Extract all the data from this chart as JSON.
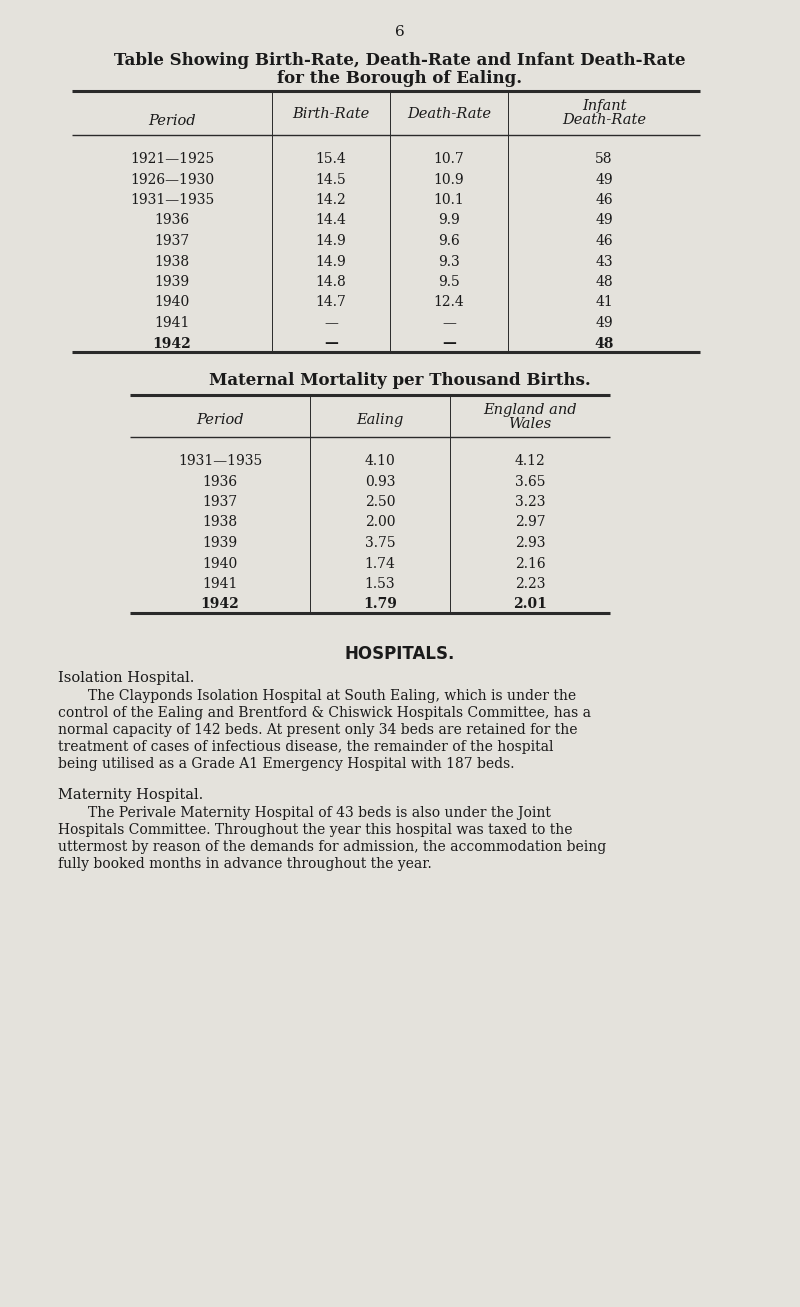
{
  "page_number": "6",
  "bg_color": "#e4e2dc",
  "text_color": "#1a1a1a",
  "table1_title_line1": "Table Showing Birth-Rate, Death-Rate and Infant Death-Rate",
  "table1_title_line2": "for the Borough of Ealing.",
  "table1_rows": [
    [
      "1921—1925",
      "15.4",
      "10.7",
      "58"
    ],
    [
      "1926—1930",
      "14.5",
      "10.9",
      "49"
    ],
    [
      "1931—1935",
      "14.2",
      "10.1",
      "46"
    ],
    [
      "1936",
      "14.4",
      "9.9",
      "49"
    ],
    [
      "1937",
      "14.9",
      "9.6",
      "46"
    ],
    [
      "1938",
      "14.9",
      "9.3",
      "43"
    ],
    [
      "1939",
      "14.8",
      "9.5",
      "48"
    ],
    [
      "1940",
      "14.7",
      "12.4",
      "41"
    ],
    [
      "1941",
      "—",
      "—",
      "49"
    ],
    [
      "1942",
      "—",
      "—",
      "48"
    ]
  ],
  "table2_title": "Maternal Mortality per Thousand Births.",
  "table2_rows": [
    [
      "1931—1935",
      "4.10",
      "4.12"
    ],
    [
      "1936",
      "0.93",
      "3.65"
    ],
    [
      "1937",
      "2.50",
      "3.23"
    ],
    [
      "1938",
      "2.00",
      "2.97"
    ],
    [
      "1939",
      "3.75",
      "2.93"
    ],
    [
      "1940",
      "1.74",
      "2.16"
    ],
    [
      "1941",
      "1.53",
      "2.23"
    ],
    [
      "1942",
      "1.79",
      "2.01"
    ]
  ],
  "hospitals_title": "HOSPITALS.",
  "isolation_header": "Isolation Hospital.",
  "isolation_text": "The Clayponds Isolation Hospital at South Ealing, which is under the control of the Ealing and Brentford & Chiswick Hospitals Committee, has a normal capacity of 142 beds.  At present only 34 beds are retained for the treatment of cases of infectious disease, the remainder of the hospital being utilised as a Grade A1 Emergency Hospital with 187 beds.",
  "maternity_header": "Maternity Hospital.",
  "maternity_text": "The Perivale Maternity Hospital of 43 beds is also under the Joint Hospitals Committee.  Throughout the year this hospital was taxed to the uttermost by reason of the demands for admission, the accommodation being fully booked months in advance throughout the year."
}
